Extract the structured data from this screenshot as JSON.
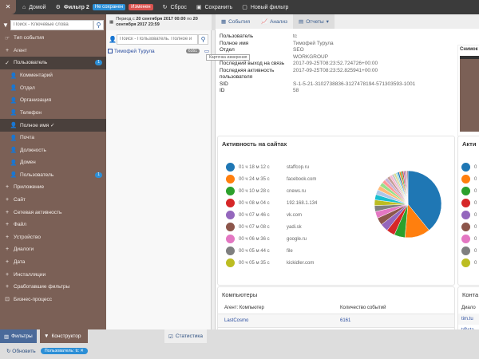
{
  "topbar": {
    "home": "Домой",
    "filter": "Фильтр 2",
    "not_saved": "Не сохранен",
    "changed": "Изменен",
    "reset": "Сброс",
    "save": "Сохранить",
    "new_filter": "Новый фильтр"
  },
  "period": {
    "prefix": "Период с",
    "from": "20 сентября 2017 00:00",
    "mid": "по",
    "to": "20 сентября 2017 23:59"
  },
  "sidebar": {
    "search_placeholder": "Поиск - Ключевые слова",
    "items": [
      {
        "label": "Тип события",
        "icon": "pointer",
        "level": 0
      },
      {
        "label": "Агент",
        "icon": "plus",
        "level": 0
      },
      {
        "label": "Пользователь",
        "icon": "check",
        "level": 0,
        "active": true,
        "count": "1"
      },
      {
        "label": "Комментарий",
        "icon": "user",
        "level": 1
      },
      {
        "label": "Отдел",
        "icon": "user",
        "level": 1
      },
      {
        "label": "Организация",
        "icon": "user",
        "level": 1
      },
      {
        "label": "Телефон",
        "icon": "user",
        "level": 1
      },
      {
        "label": "Полное имя ✓",
        "icon": "user",
        "level": 1,
        "active": true
      },
      {
        "label": "Почта",
        "icon": "user",
        "level": 1
      },
      {
        "label": "Должность",
        "icon": "user",
        "level": 1
      },
      {
        "label": "Домен",
        "icon": "user",
        "level": 1
      },
      {
        "label": "Пользователь",
        "icon": "user",
        "level": 1,
        "count": "1"
      },
      {
        "label": "Приложение",
        "icon": "plus",
        "level": 0
      },
      {
        "label": "Сайт",
        "icon": "plus",
        "level": 0
      },
      {
        "label": "Сетевая активность",
        "icon": "plus",
        "level": 0
      },
      {
        "label": "Файл",
        "icon": "plus",
        "level": 0
      },
      {
        "label": "Устройство",
        "icon": "plus",
        "level": 0
      },
      {
        "label": "Диалоги",
        "icon": "plus",
        "level": 0
      },
      {
        "label": "Дата",
        "icon": "plus",
        "level": 0
      },
      {
        "label": "Инсталляции",
        "icon": "plus",
        "level": 0
      },
      {
        "label": "Сработавшие фильтры",
        "icon": "plus",
        "level": 0
      },
      {
        "label": "Бизнес-процесс",
        "icon": "process",
        "level": 0
      }
    ]
  },
  "users": {
    "search_placeholder": "Поиск - Пользователь. Полное и",
    "items": [
      {
        "name": "Тимофей Турула",
        "count": "6161"
      }
    ],
    "tooltip": "Карточка измерения"
  },
  "tabs": {
    "events": "События",
    "analysis": "Анализ",
    "reports": "Отчеты"
  },
  "user_info": [
    {
      "k": "Пользователь",
      "v": "tc"
    },
    {
      "k": "Полное имя",
      "v": "Тимофей Турула"
    },
    {
      "k": "Отдел",
      "v": "SEO"
    },
    {
      "k": "",
      "v": "WORKGROUP"
    },
    {
      "k": "Последний выход на связь",
      "v": "2017-09-25T08:23:52.724726+00:00"
    },
    {
      "k": "Последняя активность пользователя",
      "v": "2017-09-25T08:23:52.825941+00:00"
    },
    {
      "k": "SID",
      "v": "S-1-5-21-3102738836-3127478194-571303593-1001"
    },
    {
      "k": "ID",
      "v": "58"
    }
  ],
  "screenshot_title": "Снимок",
  "sites_card": {
    "title": "Активность на сайтах"
  },
  "chart_data": {
    "type": "pie",
    "title": "Активность на сайтах",
    "slices": [
      {
        "label": "staffcop.ru",
        "value_text": "01 ч 18 м 12 с",
        "minutes": 78.2,
        "color": "#1f77b4"
      },
      {
        "label": "facebook.com",
        "value_text": "00 ч 24 м 35 с",
        "minutes": 24.58,
        "color": "#ff7f0e"
      },
      {
        "label": "cnews.ru",
        "value_text": "00 ч 10 м 28 с",
        "minutes": 10.47,
        "color": "#2ca02c"
      },
      {
        "label": "192.168.1.134",
        "value_text": "00 ч 08 м 04 с",
        "minutes": 8.07,
        "color": "#d62728"
      },
      {
        "label": "vk.com",
        "value_text": "00 ч 07 м 46 с",
        "minutes": 7.77,
        "color": "#9467bd"
      },
      {
        "label": "yadi.sk",
        "value_text": "00 ч 07 м 08 с",
        "minutes": 7.13,
        "color": "#8c564b"
      },
      {
        "label": "google.ru",
        "value_text": "00 ч 06 м 36 с",
        "minutes": 6.6,
        "color": "#e377c2"
      },
      {
        "label": "file",
        "value_text": "00 ч 05 м 44 с",
        "minutes": 5.73,
        "color": "#7f7f7f"
      },
      {
        "label": "kickidler.com",
        "value_text": "00 ч 05 м 35 с",
        "minutes": 5.58,
        "color": "#bcbd22"
      }
    ],
    "other_small_slices_minutes": [
      5.2,
      4.8,
      4.3,
      3.8,
      3.4,
      3,
      2.7,
      2.4,
      2.2,
      2,
      1.8,
      1.6,
      1.5,
      1.4,
      1.3,
      1.2,
      1.1,
      1,
      1
    ]
  },
  "right_card2": {
    "title": "Акти",
    "values": [
      "0",
      "0",
      "0",
      "0",
      "0",
      "0",
      "0",
      "0",
      "0"
    ]
  },
  "computers": {
    "title": "Компьютеры",
    "headers": [
      "Агент: Компьютер",
      "Количество событий"
    ],
    "rows": [
      [
        "LastCosmo",
        "6161"
      ]
    ]
  },
  "contacts": {
    "title": "Конта",
    "header": "Диало",
    "rows": [
      "tim.tu",
      "t@sta"
    ]
  },
  "bottom": {
    "filters": "Фильтры",
    "constructor": "Конструктор",
    "stats": "Статистика",
    "refresh": "Обновить",
    "chip": "Пользователь: tc ✕"
  }
}
